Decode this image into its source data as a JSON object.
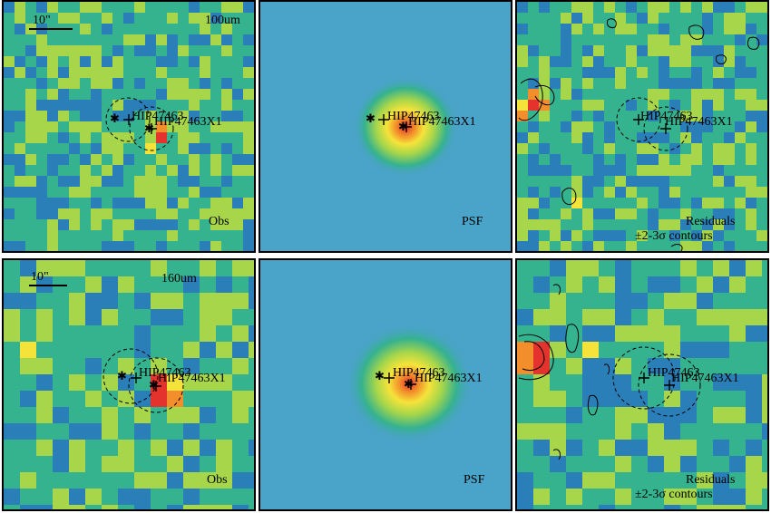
{
  "colors": {
    "low": "#3b1e78",
    "mid_low": "#2a7fb8",
    "mid": "#35b28e",
    "mid_high": "#a7d64a",
    "high": "#f6e33a",
    "peak_warm": "#f28e2b",
    "peak": "#e4322c",
    "psf_background": "#4aa3c8",
    "contour": "#000000",
    "border": "#000000"
  },
  "source_labels": {
    "primary": "HIP47463",
    "secondary": "HIP47463X1"
  },
  "rows": [
    {
      "band_label": "100um",
      "scale_bar_label": "10\"",
      "panels": [
        {
          "id": "obs",
          "label": "Obs"
        },
        {
          "id": "psf",
          "label": "PSF"
        },
        {
          "id": "resid",
          "label_line1": "Residuals",
          "label_line2": "±2-3σ contours"
        }
      ]
    },
    {
      "band_label": "160um",
      "scale_bar_label": "10\"",
      "panels": [
        {
          "id": "obs",
          "label": "Obs"
        },
        {
          "id": "psf",
          "label": "PSF"
        },
        {
          "id": "resid",
          "label_line1": "Residuals",
          "label_line2": "±2-3σ contours"
        }
      ]
    }
  ]
}
